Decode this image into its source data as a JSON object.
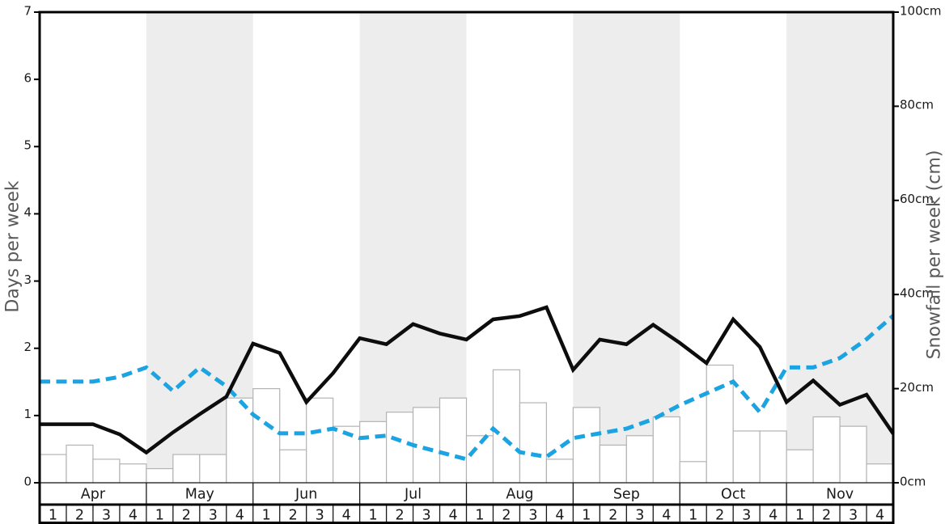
{
  "chart_data": {
    "type": "bar+line",
    "title": "",
    "months": [
      "Apr",
      "May",
      "Jun",
      "Jul",
      "Aug",
      "Sep",
      "Oct",
      "Nov"
    ],
    "week_labels": [
      "1",
      "2",
      "3",
      "4"
    ],
    "left_axis": {
      "label": "Days per week",
      "tick_values": [
        0,
        1,
        2,
        3,
        4,
        5,
        6,
        7
      ],
      "range": [
        0,
        7
      ]
    },
    "right_axis": {
      "label": "Snowfall per week (cm)",
      "tick_values": [
        0,
        20,
        40,
        60,
        80,
        100
      ],
      "tick_labels": [
        "0cm",
        "20cm",
        "40cm",
        "60cm",
        "80cm",
        "100cm"
      ],
      "range": [
        0,
        100
      ]
    },
    "background_band_color": "#ededed",
    "banded_months": [
      "May",
      "Jul",
      "Sep",
      "Nov"
    ],
    "grid": false,
    "series": [
      {
        "name": "days_per_week",
        "type": "line",
        "line_style": "solid",
        "color": "#0d0d0d",
        "axis": "left",
        "values": [
          0.87,
          0.87,
          0.87,
          0.72,
          0.45,
          0.75,
          1.02,
          1.28,
          2.07,
          1.93,
          1.2,
          1.63,
          2.15,
          2.06,
          2.36,
          2.22,
          2.13,
          2.43,
          2.48,
          2.61,
          1.68,
          2.13,
          2.06,
          2.35,
          2.08,
          1.78,
          2.43,
          2.02,
          1.2,
          1.52,
          1.16,
          1.31,
          0.73
        ]
      },
      {
        "name": "snowfall_per_week_cm",
        "type": "line",
        "line_style": "dashed",
        "color": "#1ca3e2",
        "axis": "right",
        "values": [
          21.5,
          21.5,
          21.5,
          22.5,
          24.5,
          19.5,
          24.5,
          20.5,
          14.5,
          10.5,
          10.5,
          11.5,
          9.5,
          10,
          8,
          6.5,
          5,
          11.5,
          6.5,
          5.5,
          9.5,
          10.5,
          11.5,
          13.5,
          16.5,
          19,
          21.5,
          15,
          24.5,
          24.5,
          26.5,
          30.5,
          35.5
        ]
      },
      {
        "name": "snowfall_bars_cm",
        "type": "bar",
        "axis": "right",
        "fill": "#ffffff",
        "stroke": "#b3b3b3",
        "values": [
          6,
          8,
          5,
          4,
          3,
          6,
          6,
          18,
          20,
          7,
          18,
          12,
          13,
          15,
          16,
          18,
          10,
          24,
          17,
          5,
          16,
          8,
          10,
          14,
          4.5,
          25,
          11,
          11,
          7,
          14,
          12,
          4
        ]
      }
    ]
  }
}
